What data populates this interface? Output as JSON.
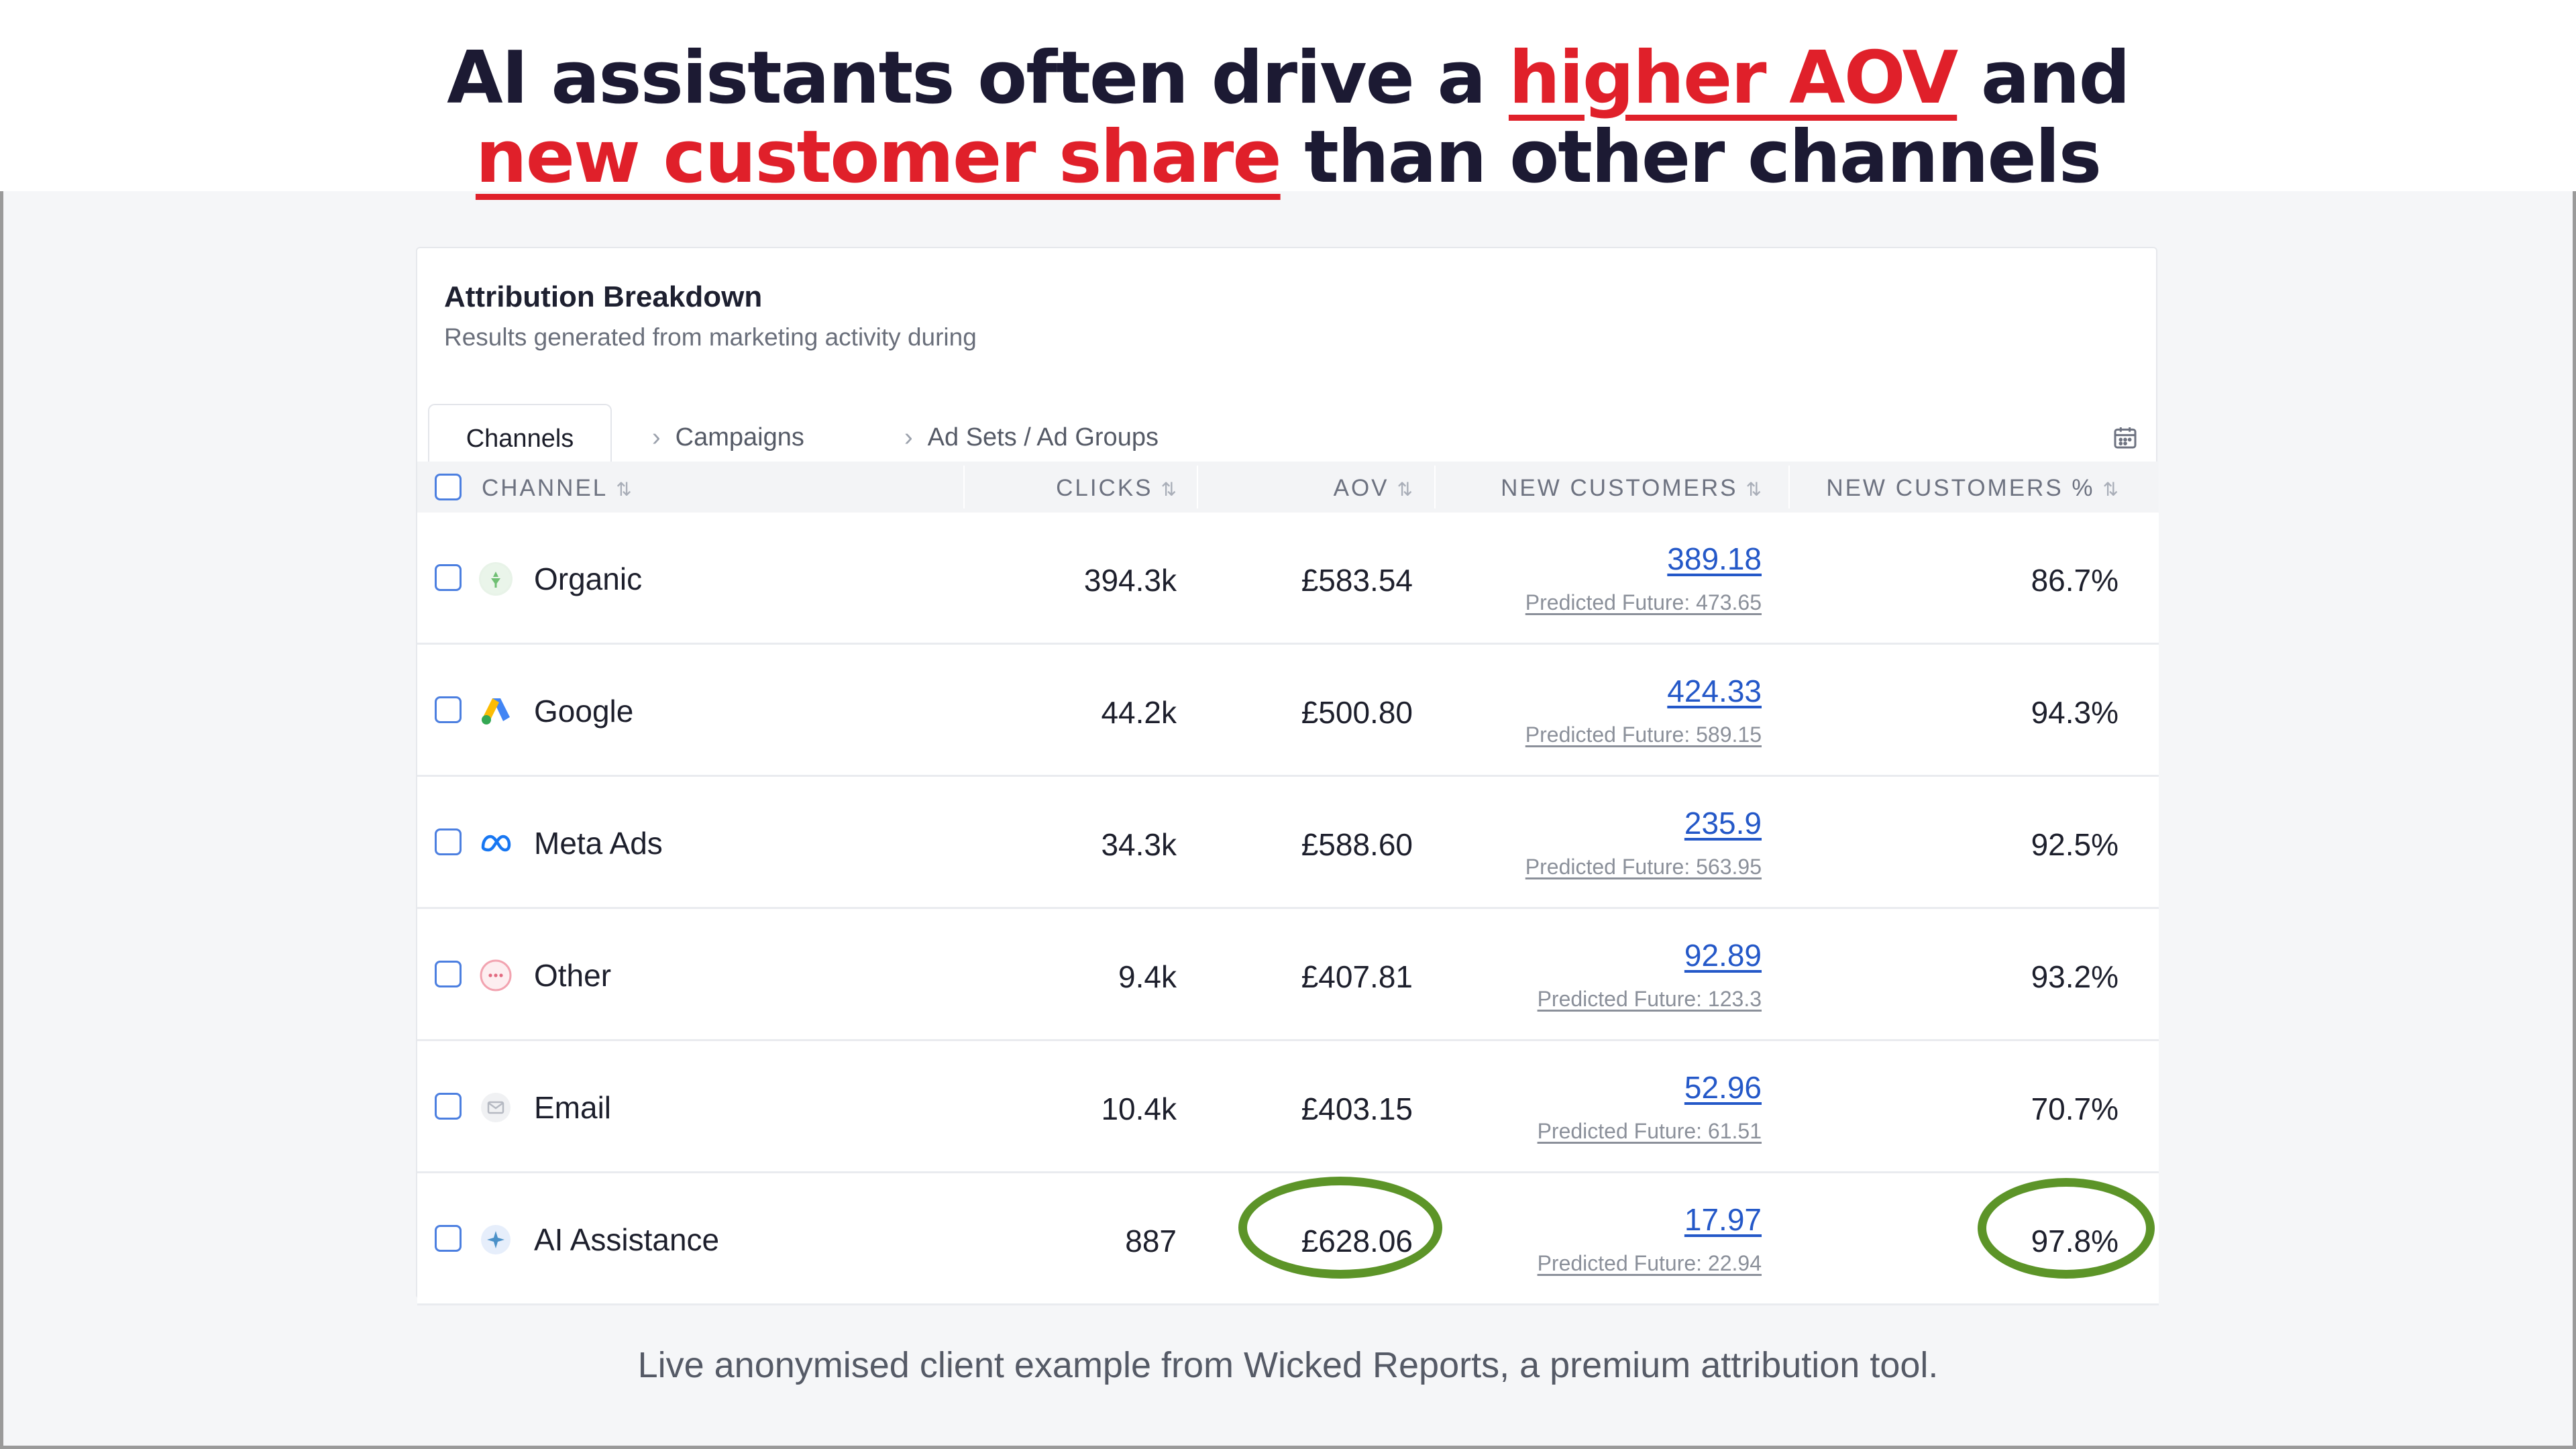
{
  "headline": {
    "line1_a": "AI assistants often drive a ",
    "line1_hl": "higher AOV",
    "line1_b": " and",
    "line2_hl": "new customer share",
    "line2_b": " than other channels"
  },
  "card": {
    "title": "Attribution Breakdown",
    "subtitle": "Results generated from marketing activity during"
  },
  "tabs": [
    {
      "label": "Channels"
    },
    {
      "label": "Campaigns"
    },
    {
      "label": "Ad Sets / Ad Groups"
    }
  ],
  "icons": {
    "calendar": "calendar-icon",
    "sort": "sort-arrows-icon",
    "chevron": "chevron-right-icon"
  },
  "columns": {
    "channel": "CHANNEL",
    "clicks": "CLICKS",
    "aov": "AOV",
    "new_customers": "NEW CUSTOMERS",
    "new_customers_pct": "NEW CUSTOMERS %"
  },
  "rows": [
    {
      "channel": "Organic",
      "icon": "organic-icon",
      "clicks": "394.3k",
      "aov": "£583.54",
      "new_customers": "389.18",
      "predicted": "Predicted Future: 473.65",
      "pct": "86.7%"
    },
    {
      "channel": "Google",
      "icon": "google-ads-icon",
      "clicks": "44.2k",
      "aov": "£500.80",
      "new_customers": "424.33",
      "predicted": "Predicted Future: 589.15",
      "pct": "94.3%"
    },
    {
      "channel": "Meta Ads",
      "icon": "meta-icon",
      "clicks": "34.3k",
      "aov": "£588.60",
      "new_customers": "235.9",
      "predicted": "Predicted Future: 563.95",
      "pct": "92.5%"
    },
    {
      "channel": "Other",
      "icon": "other-dots-icon",
      "clicks": "9.4k",
      "aov": "£407.81",
      "new_customers": "92.89",
      "predicted": "Predicted Future: 123.3",
      "pct": "93.2%"
    },
    {
      "channel": "Email",
      "icon": "email-icon",
      "clicks": "10.4k",
      "aov": "£403.15",
      "new_customers": "52.96",
      "predicted": "Predicted Future: 61.51",
      "pct": "70.7%"
    },
    {
      "channel": "AI Assistance",
      "icon": "ai-sparkle-icon",
      "clicks": "887",
      "aov": "£628.06",
      "new_customers": "17.97",
      "predicted": "Predicted Future: 22.94",
      "pct": "97.8%"
    }
  ],
  "colors": {
    "highlight_red": "#e0202a",
    "circle_green": "#5c9428",
    "link_blue": "#2458c8"
  },
  "footer": "Live anonymised client example from Wicked Reports, a premium attribution tool."
}
